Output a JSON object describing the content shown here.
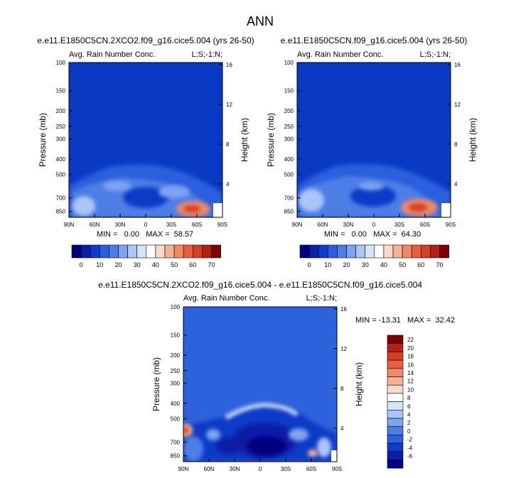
{
  "figure": {
    "title": "ANN",
    "colors": {
      "background": "#ffffff",
      "base_abs": "#0a3ac4",
      "base_diff": "#2e62dc"
    },
    "abs_colormap": [
      "#00007f",
      "#0a1fa6",
      "#0f3bc8",
      "#2c5ede",
      "#4d7ee6",
      "#7ea3ef",
      "#abc5f6",
      "#d6e4fb",
      "#ffffff",
      "#fbd9c7",
      "#f6b394",
      "#f08a66",
      "#e5603c",
      "#d6401e",
      "#b42112",
      "#7f0000"
    ],
    "abs_colorbar_labels": [
      "0",
      "10",
      "20",
      "30",
      "40",
      "50",
      "60",
      "70"
    ],
    "diff_colormap": [
      "#00007f",
      "#0a1fa6",
      "#0f3bc8",
      "#2c5ede",
      "#4d7ee6",
      "#7ea3ef",
      "#abc5f6",
      "#d6e4fb",
      "#ffffff",
      "#fbd9c7",
      "#f6b394",
      "#f08a66",
      "#e5603c",
      "#d6401e",
      "#b42112",
      "#7f0000"
    ],
    "diff_colorbar_labels": [
      "22",
      "20",
      "18",
      "16",
      "14",
      "12",
      "10",
      "8",
      "6",
      "4",
      "2",
      "0",
      "-2",
      "-4",
      "-6"
    ]
  },
  "chart_data": [
    {
      "type": "heatmap",
      "case_title": "e.e11.E1850C5CN.2XCO2.f09_g16.cice5.004 (yrs 26-50)",
      "variable": "Avg. Rain Number Conc.",
      "corner_label": "L;S;-1:N;",
      "ylabel": "Pressure (mb)",
      "ylabel_right": "Height (km)",
      "x_ticks": [
        "90N",
        "60N",
        "30N",
        "0",
        "30S",
        "60S",
        "90S"
      ],
      "y_ticks": [
        "100",
        "150",
        "200",
        "250",
        "300",
        "400",
        "500",
        "700",
        "850"
      ],
      "y_ticks_right": [
        "16",
        "12",
        "8",
        "4"
      ],
      "stats": "MIN =   0.00   MAX =  58.57",
      "min": 0.0,
      "max": 58.57,
      "ylim": [
        100,
        925
      ],
      "xlim": [
        90,
        -90
      ]
    },
    {
      "type": "heatmap",
      "case_title": "e.e11.E1850C5CN.f09_g16.cice5.004 (yrs 26-50)",
      "variable": "Avg. Rain Number Conc.",
      "corner_label": "L;S;-1:N;",
      "ylabel": "Pressure (mb)",
      "ylabel_right": "Height (km)",
      "x_ticks": [
        "90N",
        "60N",
        "30N",
        "0",
        "30S",
        "60S",
        "90S"
      ],
      "y_ticks": [
        "100",
        "150",
        "200",
        "250",
        "300",
        "400",
        "500",
        "700",
        "850"
      ],
      "y_ticks_right": [
        "16",
        "12",
        "8",
        "4"
      ],
      "stats": "MIN =   0.00   MAX =  64.30",
      "min": 0.0,
      "max": 64.3,
      "ylim": [
        100,
        925
      ],
      "xlim": [
        90,
        -90
      ]
    },
    {
      "type": "heatmap",
      "case_title": "e.e11.E1850C5CN.2XCO2.f09_g16.cice5.004 - e.e11.E1850C5CN.f09_g16.cice5.004",
      "variable": "Avg. Rain Number Conc.",
      "corner_label": "L;S;-1:N;",
      "ylabel": "Pressure (mb)",
      "ylabel_right": "Height (km)",
      "x_ticks": [
        "90N",
        "60N",
        "30N",
        "0",
        "30S",
        "60S",
        "90S"
      ],
      "y_ticks": [
        "100",
        "150",
        "200",
        "250",
        "300",
        "400",
        "500",
        "700",
        "850"
      ],
      "y_ticks_right": [
        "16",
        "12",
        "8",
        "4"
      ],
      "stats": "MIN = -13.31   MAX =  32.42",
      "min": -13.31,
      "max": 32.42,
      "ylim": [
        100,
        925
      ],
      "xlim": [
        90,
        -90
      ]
    }
  ]
}
